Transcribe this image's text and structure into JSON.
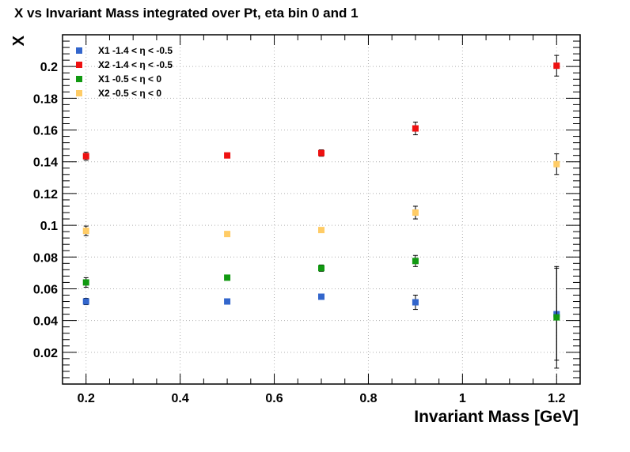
{
  "chart_data": {
    "type": "scatter",
    "title": "X vs Invariant Mass integrated over Pt, eta bin 0 and 1",
    "xlabel": "Invariant Mass [GeV]",
    "ylabel": "X",
    "xlim": [
      0.15,
      1.25
    ],
    "ylim": [
      0.0,
      0.22
    ],
    "x_ticks": [
      0.2,
      0.4,
      0.6,
      0.8,
      1.0,
      1.2
    ],
    "x_tick_labels": [
      "0.2",
      "0.4",
      "0.6",
      "0.8",
      "1",
      "1.2"
    ],
    "y_ticks": [
      0.02,
      0.04,
      0.06,
      0.08,
      0.1,
      0.12,
      0.14,
      0.16,
      0.18,
      0.2
    ],
    "y_tick_labels": [
      "0.02",
      "0.04",
      "0.06",
      "0.08",
      "0.1",
      "0.12",
      "0.14",
      "0.16",
      "0.18",
      "0.2"
    ],
    "grid": true,
    "legend_position": "top-left",
    "series": [
      {
        "name": "X1 -1.4 < η < -0.5",
        "color": "#3366cc",
        "x": [
          0.2,
          0.5,
          0.7,
          0.9,
          1.2
        ],
        "y": [
          0.052,
          0.052,
          0.055,
          0.0515,
          0.044
        ],
        "err": [
          0.002,
          0.0012,
          0.0015,
          0.0045,
          0.029
        ]
      },
      {
        "name": "X2 -1.4 < η < -0.5",
        "color": "#ee1111",
        "x": [
          0.2,
          0.5,
          0.7,
          0.9,
          1.2
        ],
        "y": [
          0.1435,
          0.144,
          0.1455,
          0.161,
          0.2005
        ],
        "err": [
          0.0025,
          0.0012,
          0.002,
          0.004,
          0.0065
        ]
      },
      {
        "name": "X1 -0.5 < η < 0",
        "color": "#119911",
        "x": [
          0.2,
          0.5,
          0.7,
          0.9,
          1.2
        ],
        "y": [
          0.064,
          0.067,
          0.073,
          0.0775,
          0.042
        ],
        "err": [
          0.003,
          0.0012,
          0.002,
          0.0035,
          0.032
        ]
      },
      {
        "name": "X2 -0.5 < η < 0",
        "color": "#ffcc66",
        "x": [
          0.2,
          0.5,
          0.7,
          0.9,
          1.2
        ],
        "y": [
          0.0965,
          0.0945,
          0.097,
          0.108,
          0.1385
        ],
        "err": [
          0.003,
          0.0012,
          0.0015,
          0.004,
          0.0065
        ]
      }
    ]
  }
}
